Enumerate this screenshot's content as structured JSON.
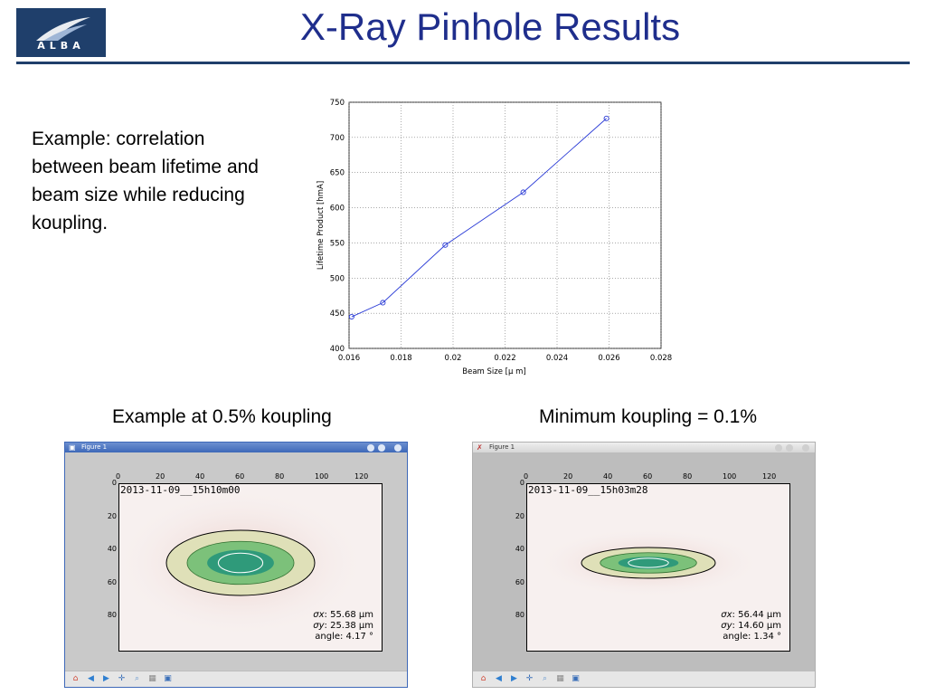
{
  "slide": {
    "title": "X-Ray Pinhole Results",
    "logo_text": "ALBA",
    "description": "Example: correlation between beam lifetime and beam size while reducing koupling.",
    "caption_left": "Example at 0.5% koupling",
    "caption_right": "Minimum koupling = 0.1%",
    "colors": {
      "title": "#1f2e8c",
      "rule": "#1f3f6b",
      "logo_bg": "#1f3f6b",
      "series": "#2a3bd6"
    }
  },
  "chart_data": {
    "type": "line",
    "xlabel": "Beam Size [μ m]",
    "ylabel": "Lifetime Product [hmA]",
    "xlim": [
      0.016,
      0.028
    ],
    "ylim": [
      400,
      750
    ],
    "x_ticks": [
      "0.016",
      "0.018",
      "0.02",
      "0.022",
      "0.024",
      "0.026",
      "0.028"
    ],
    "y_ticks": [
      "400",
      "450",
      "500",
      "550",
      "600",
      "650",
      "700",
      "750"
    ],
    "grid": true,
    "marker": "circle",
    "x": [
      0.0161,
      0.0173,
      0.0197,
      0.0227,
      0.0259
    ],
    "y": [
      445,
      465,
      547,
      622,
      727
    ]
  },
  "figures": [
    {
      "window_title": "Figure 1",
      "theme": "blue",
      "timestamp": "2013-11-09__15h10m00",
      "x_ticks": [
        "0",
        "20",
        "40",
        "60",
        "80",
        "100",
        "120"
      ],
      "y_ticks": [
        "0",
        "20",
        "40",
        "60",
        "80"
      ],
      "sigma_x_label": "σx",
      "sigma_x": ": 55.68 μm",
      "sigma_y_label": "σy",
      "sigma_y": ": 25.38 μm",
      "angle": "angle: 4.17 °",
      "toolbar_icons": [
        "home-icon",
        "back-icon",
        "forward-icon",
        "pan-icon",
        "zoom-icon",
        "subplots-icon",
        "save-icon"
      ]
    },
    {
      "window_title": "Figure 1",
      "theme": "grey",
      "timestamp": "2013-11-09__15h03m28",
      "x_ticks": [
        "0",
        "20",
        "40",
        "60",
        "80",
        "100",
        "120"
      ],
      "y_ticks": [
        "0",
        "20",
        "40",
        "60",
        "80"
      ],
      "sigma_x_label": "σx",
      "sigma_x": ": 56.44 μm",
      "sigma_y_label": "σy",
      "sigma_y": ": 14.60 μm",
      "angle": "angle: 1.34 °",
      "toolbar_icons": [
        "home-icon",
        "back-icon",
        "forward-icon",
        "pan-icon",
        "zoom-icon",
        "subplots-icon",
        "save-icon"
      ]
    }
  ]
}
